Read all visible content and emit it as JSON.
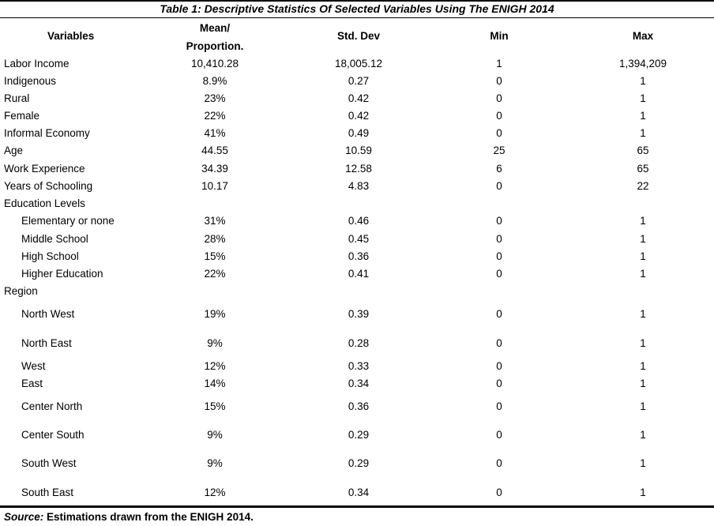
{
  "title": "Table 1: Descriptive Statistics Of Selected Variables Using The ENIGH 2014",
  "headers": {
    "variables": "Variables",
    "mean_line1": "Mean/",
    "mean_line2": "Proportion.",
    "std": "Std. Dev",
    "min": "Min",
    "max": "Max"
  },
  "rows": [
    {
      "label": "Labor Income",
      "indent": false,
      "mean": "10,410.28",
      "std": "18,005.12",
      "min": "1",
      "max": "1,394,209"
    },
    {
      "label": "Indigenous",
      "indent": false,
      "mean": "8.9%",
      "std": "0.27",
      "min": "0",
      "max": "1"
    },
    {
      "label": "Rural",
      "indent": false,
      "mean": "23%",
      "std": "0.42",
      "min": "0",
      "max": "1"
    },
    {
      "label": "Female",
      "indent": false,
      "mean": "22%",
      "std": "0.42",
      "min": "0",
      "max": "1"
    },
    {
      "label": "Informal Economy",
      "indent": false,
      "mean": "41%",
      "std": "0.49",
      "min": "0",
      "max": "1"
    },
    {
      "label": "Age",
      "indent": false,
      "mean": "44.55",
      "std": "10.59",
      "min": "25",
      "max": "65"
    },
    {
      "label": "Work Experience",
      "indent": false,
      "mean": "34.39",
      "std": "12.58",
      "min": "6",
      "max": "65"
    },
    {
      "label": "Years of Schooling",
      "indent": false,
      "mean": "10.17",
      "std": "4.83",
      "min": "0",
      "max": "22"
    },
    {
      "label": "Education Levels",
      "indent": false,
      "mean": "",
      "std": "",
      "min": "",
      "max": ""
    },
    {
      "label": "Elementary or none",
      "indent": true,
      "mean": "31%",
      "std": "0.46",
      "min": "0",
      "max": "1"
    },
    {
      "label": "Middle School",
      "indent": true,
      "mean": "28%",
      "std": "0.45",
      "min": "0",
      "max": "1"
    },
    {
      "label": "High School",
      "indent": true,
      "mean": "15%",
      "std": "0.36",
      "min": "0",
      "max": "1"
    },
    {
      "label": "Higher Education",
      "indent": true,
      "mean": "22%",
      "std": "0.41",
      "min": "0",
      "max": "1"
    },
    {
      "label": "Region",
      "indent": false,
      "mean": "",
      "std": "",
      "min": "",
      "max": ""
    },
    {
      "label": "North West",
      "indent": true,
      "mean": "19%",
      "std": "0.39",
      "min": "0",
      "max": "1"
    },
    {
      "label": "North East",
      "indent": true,
      "mean": "9%",
      "std": "0.28",
      "min": "0",
      "max": "1"
    },
    {
      "label": "West",
      "indent": true,
      "mean": "12%",
      "std": "0.33",
      "min": "0",
      "max": "1"
    },
    {
      "label": "East",
      "indent": true,
      "mean": "14%",
      "std": "0.34",
      "min": "0",
      "max": "1"
    },
    {
      "label": "Center North",
      "indent": true,
      "mean": "15%",
      "std": "0.36",
      "min": "0",
      "max": "1"
    },
    {
      "label": "Center South",
      "indent": true,
      "mean": "9%",
      "std": "0.29",
      "min": "0",
      "max": "1"
    },
    {
      "label": "South West",
      "indent": true,
      "mean": "9%",
      "std": "0.29",
      "min": "0",
      "max": "1"
    },
    {
      "label": "South East",
      "indent": true,
      "mean": "12%",
      "std": "0.34",
      "min": "0",
      "max": "1"
    }
  ],
  "source": {
    "label": "Source:",
    "text": "Estimations drawn from the ENIGH 2014."
  }
}
